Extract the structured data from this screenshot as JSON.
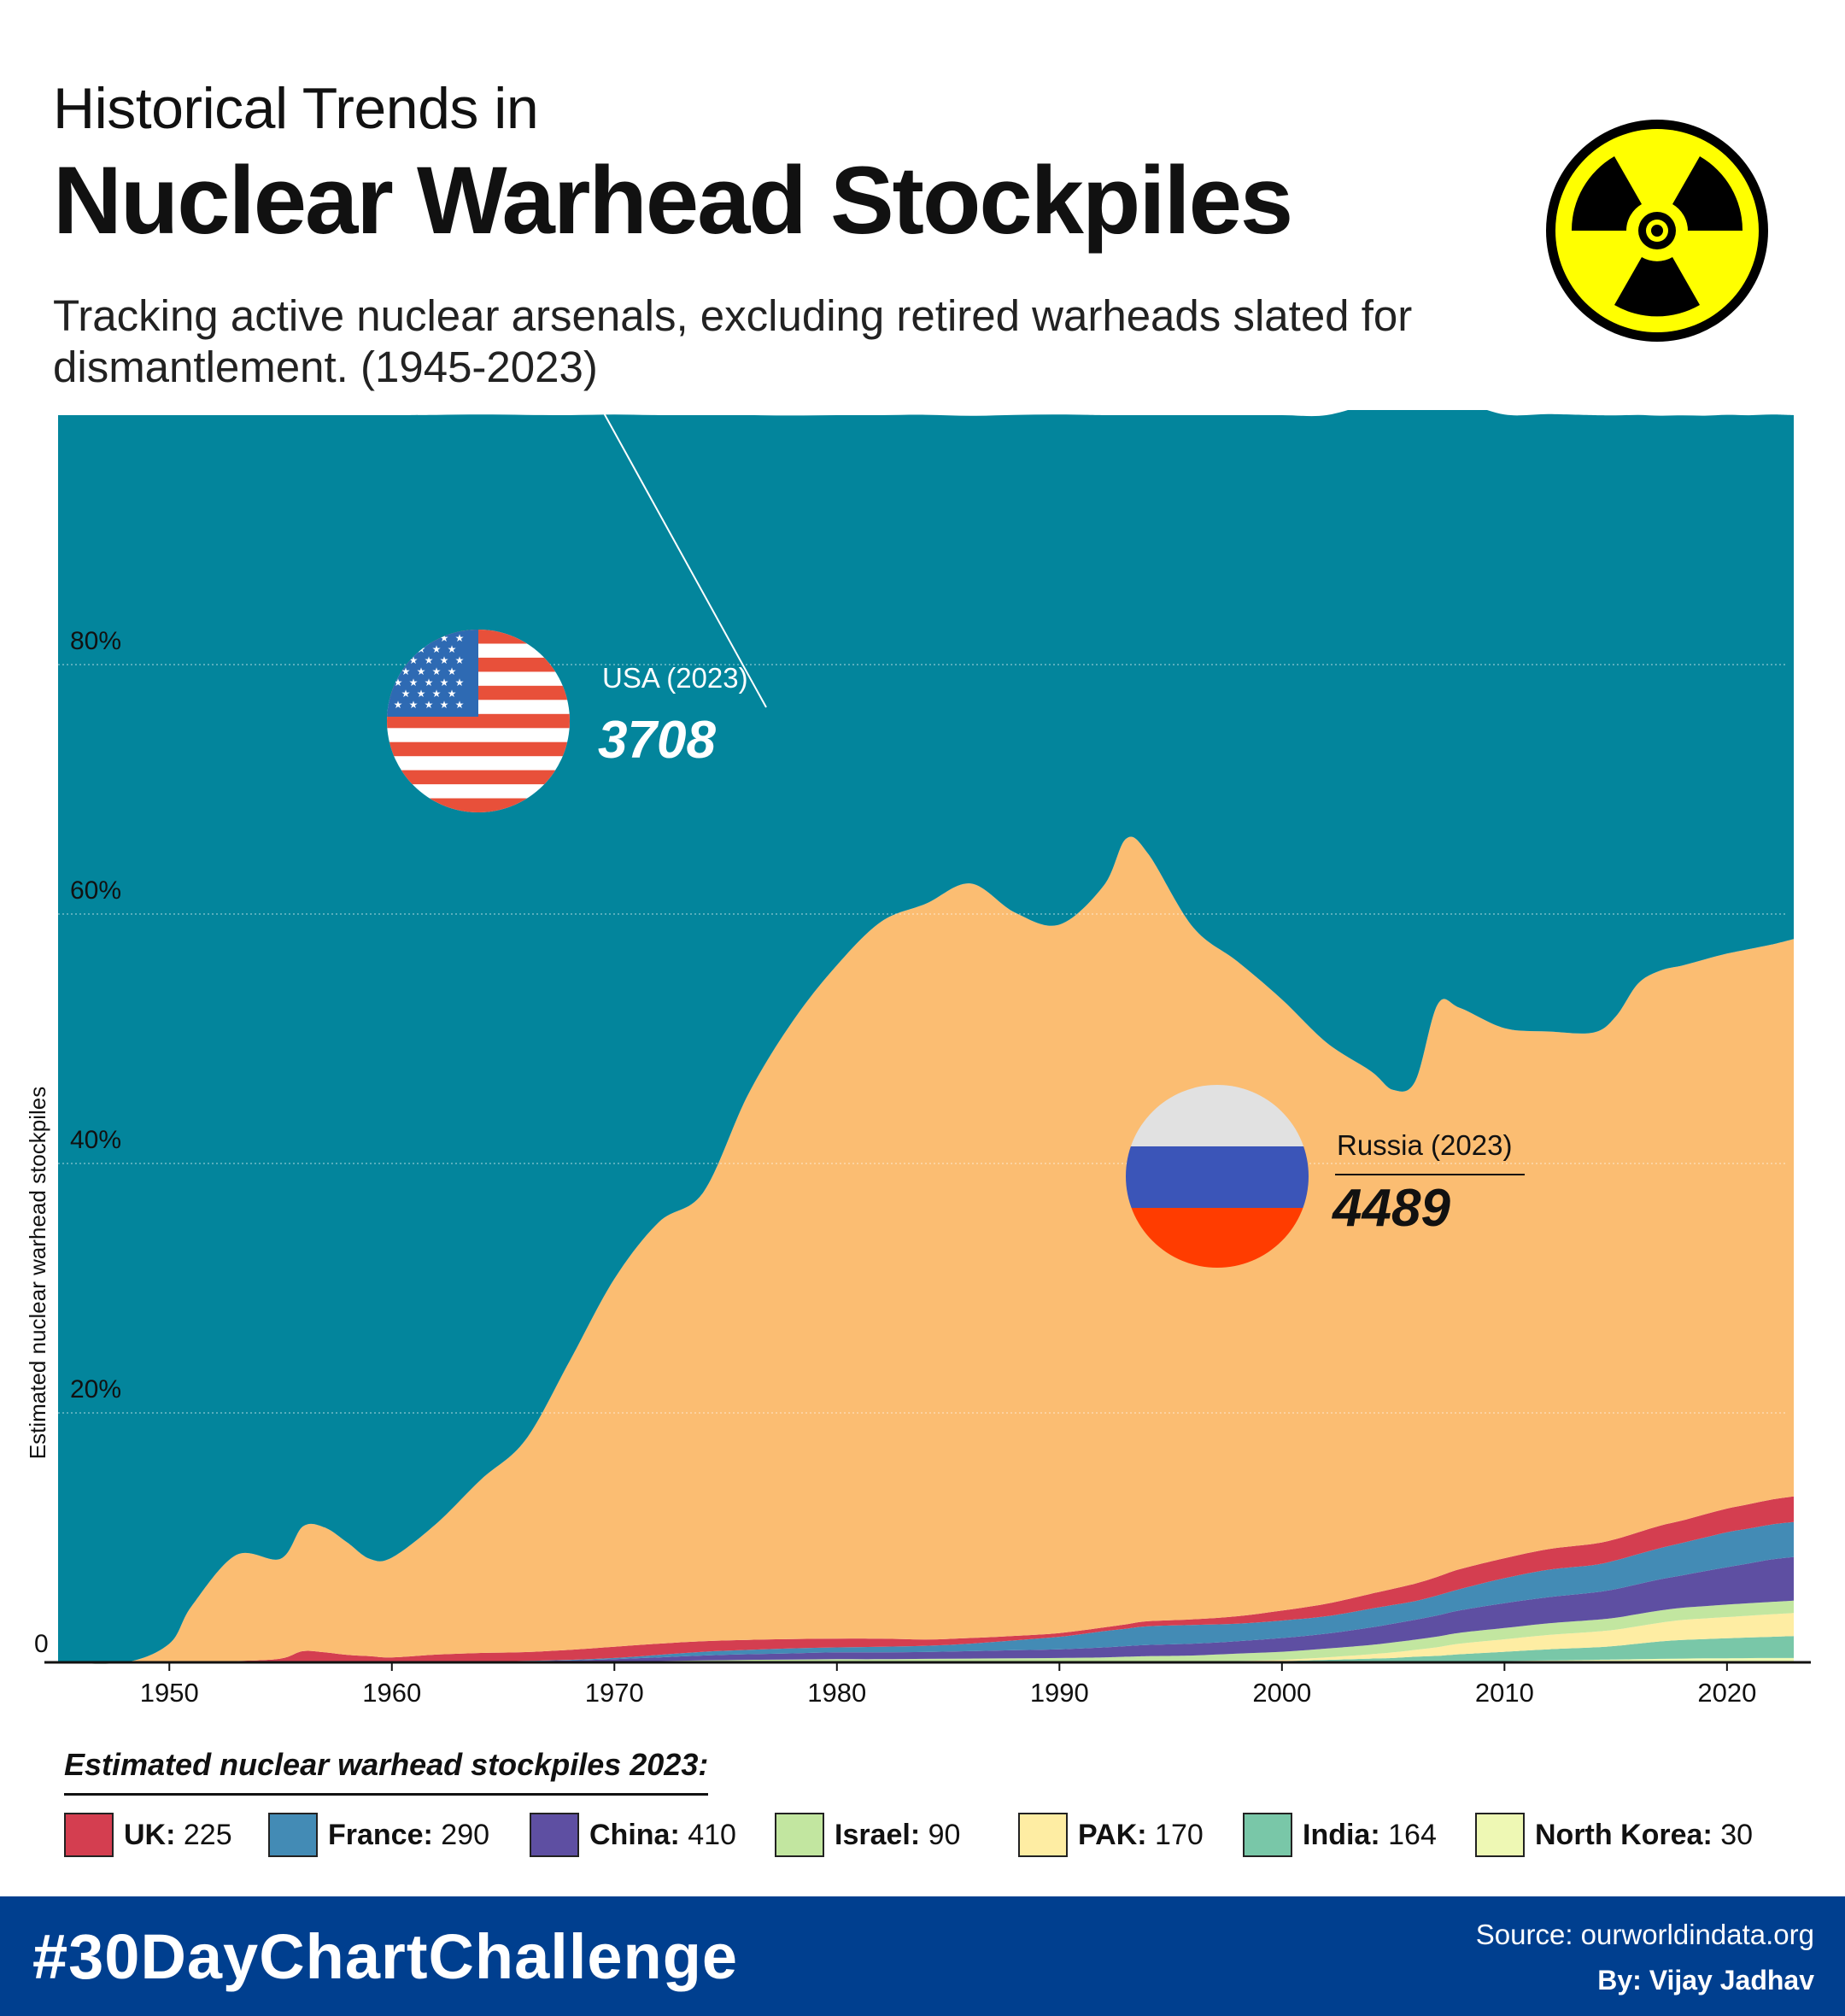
{
  "header": {
    "title_line1": "Historical Trends in",
    "title_line2": "Nuclear Warhead Stockpiles",
    "subtitle": "Tracking active nuclear arsenals, excluding retired warheads slated for dismantlement. (1945-2023)"
  },
  "icons": {
    "radiation": "radiation-symbol",
    "usa_flag": "usa-flag",
    "russia_flag": "russia-flag"
  },
  "colors": {
    "usa": "#03859c",
    "russia": "#fbbd72",
    "uk": "#d43e50",
    "france": "#438bb5",
    "china": "#5e4fa2",
    "israel": "#c2e6a0",
    "pak": "#feeda3",
    "india": "#79c7a8",
    "north_korea": "#eef8b4",
    "footer": "#003f8f"
  },
  "chart_data": {
    "type": "area",
    "stacked": true,
    "normalized": true,
    "ylabel": "Estimated nuclear warhead stockpiles",
    "ylim": [
      0,
      100
    ],
    "xlim": [
      1945,
      2023
    ],
    "x_ticks": [
      1950,
      1960,
      1970,
      1980,
      1990,
      2000,
      2010,
      2020
    ],
    "y_ticks": [
      {
        "value": 0,
        "label": "0"
      },
      {
        "value": 20,
        "label": "20%"
      },
      {
        "value": 40,
        "label": "40%"
      },
      {
        "value": 60,
        "label": "60%"
      },
      {
        "value": 80,
        "label": "80%"
      }
    ],
    "grid": true,
    "x": [
      1945,
      1948,
      1950,
      1951,
      1953,
      1955,
      1956,
      1957,
      1958,
      1959,
      1960,
      1962,
      1964,
      1966,
      1968,
      1970,
      1972,
      1974,
      1976,
      1978,
      1980,
      1982,
      1984,
      1986,
      1988,
      1990,
      1992,
      1993,
      1994,
      1996,
      1998,
      2000,
      2002,
      2004,
      2005,
      2006,
      2007,
      2008,
      2010,
      2012,
      2014,
      2015,
      2016,
      2017,
      2018,
      2019,
      2020,
      2021,
      2022,
      2023
    ],
    "series": [
      {
        "name": "North Korea",
        "values": [
          0,
          0,
          0,
          0,
          0,
          0,
          0,
          0,
          0,
          0,
          0,
          0,
          0,
          0,
          0,
          0,
          0,
          0,
          0,
          0,
          0,
          0,
          0,
          0,
          0,
          0,
          0,
          0,
          0,
          0,
          0,
          0,
          0,
          0,
          0,
          0,
          0.02,
          0.05,
          0.1,
          0.15,
          0.2,
          0.22,
          0.25,
          0.28,
          0.3,
          0.32,
          0.33,
          0.34,
          0.35,
          0.35
        ]
      },
      {
        "name": "India",
        "values": [
          0,
          0,
          0,
          0,
          0,
          0,
          0,
          0,
          0,
          0,
          0,
          0,
          0,
          0,
          0,
          0,
          0,
          0,
          0,
          0,
          0,
          0,
          0,
          0,
          0,
          0,
          0,
          0,
          0,
          0,
          0.05,
          0.1,
          0.2,
          0.3,
          0.35,
          0.45,
          0.5,
          0.6,
          0.75,
          0.9,
          1.0,
          1.1,
          1.25,
          1.4,
          1.5,
          1.55,
          1.6,
          1.65,
          1.7,
          1.75
        ]
      },
      {
        "name": "PAK",
        "values": [
          0,
          0,
          0,
          0,
          0,
          0,
          0,
          0,
          0,
          0,
          0,
          0,
          0,
          0,
          0,
          0,
          0,
          0,
          0,
          0,
          0,
          0,
          0,
          0,
          0,
          0,
          0,
          0,
          0,
          0,
          0.05,
          0.1,
          0.2,
          0.35,
          0.45,
          0.55,
          0.7,
          0.85,
          1.0,
          1.15,
          1.25,
          1.3,
          1.4,
          1.5,
          1.6,
          1.65,
          1.7,
          1.75,
          1.8,
          1.85
        ]
      },
      {
        "name": "Israel",
        "values": [
          0,
          0,
          0,
          0,
          0,
          0,
          0,
          0,
          0,
          0,
          0,
          0,
          0,
          0,
          0,
          0.05,
          0.1,
          0.15,
          0.2,
          0.22,
          0.25,
          0.25,
          0.28,
          0.3,
          0.32,
          0.35,
          0.4,
          0.45,
          0.5,
          0.55,
          0.6,
          0.65,
          0.7,
          0.75,
          0.8,
          0.82,
          0.85,
          0.87,
          0.9,
          0.93,
          0.95,
          0.96,
          0.97,
          0.98,
          0.98,
          0.99,
          1.0,
          1.0,
          1.0,
          1.0
        ]
      },
      {
        "name": "China",
        "values": [
          0,
          0,
          0,
          0,
          0,
          0,
          0,
          0,
          0,
          0,
          0,
          0.02,
          0.05,
          0.1,
          0.15,
          0.2,
          0.3,
          0.4,
          0.45,
          0.5,
          0.55,
          0.55,
          0.55,
          0.6,
          0.65,
          0.7,
          0.8,
          0.85,
          0.9,
          0.95,
          1.0,
          1.1,
          1.2,
          1.4,
          1.5,
          1.6,
          1.7,
          1.8,
          2.0,
          2.1,
          2.2,
          2.3,
          2.4,
          2.5,
          2.6,
          2.8,
          3.0,
          3.2,
          3.4,
          3.5
        ]
      },
      {
        "name": "France",
        "values": [
          0,
          0,
          0,
          0,
          0,
          0,
          0,
          0,
          0,
          0,
          0,
          0,
          0,
          0.02,
          0.05,
          0.1,
          0.2,
          0.3,
          0.35,
          0.4,
          0.4,
          0.45,
          0.5,
          0.6,
          0.8,
          1.0,
          1.3,
          1.4,
          1.5,
          1.5,
          1.4,
          1.4,
          1.4,
          1.5,
          1.5,
          1.5,
          1.6,
          1.7,
          2.0,
          2.2,
          2.2,
          2.3,
          2.4,
          2.5,
          2.6,
          2.7,
          2.8,
          2.8,
          2.8,
          2.8
        ]
      },
      {
        "name": "UK",
        "values": [
          0,
          0,
          0,
          0,
          0.1,
          0.3,
          0.9,
          0.8,
          0.6,
          0.5,
          0.4,
          0.6,
          0.7,
          0.7,
          0.8,
          0.9,
          0.9,
          0.85,
          0.8,
          0.75,
          0.7,
          0.65,
          0.5,
          0.45,
          0.35,
          0.3,
          0.3,
          0.35,
          0.4,
          0.45,
          0.6,
          0.8,
          1.0,
          1.2,
          1.3,
          1.4,
          1.5,
          1.6,
          1.6,
          1.65,
          1.7,
          1.7,
          1.75,
          1.8,
          1.8,
          1.85,
          1.9,
          1.95,
          2.0,
          2.05
        ]
      },
      {
        "name": "Russia",
        "values": [
          0,
          0,
          1.5,
          4.5,
          8.5,
          8.0,
          10.0,
          10.0,
          9.0,
          7.8,
          8.0,
          10.5,
          13.9,
          17.0,
          23.2,
          29.5,
          33.8,
          36.0,
          43.7,
          49.5,
          54.0,
          57.5,
          59.0,
          60.5,
          58.0,
          56.8,
          59.5,
          63.0,
          61.5,
          55.5,
          52.5,
          49.0,
          45.0,
          41.9,
          40.0,
          40.3,
          45.9,
          45.0,
          42.5,
          41.5,
          41.0,
          41.9,
          44.0,
          44.5,
          44.5,
          44.5,
          44.5,
          44.5,
          44.5,
          44.7
        ]
      },
      {
        "name": "USA",
        "values": [
          100,
          100,
          98.5,
          95.5,
          91.4,
          91.7,
          89.1,
          89.2,
          90.4,
          91.7,
          91.6,
          88.9,
          85.4,
          82.2,
          75.8,
          69.3,
          64.7,
          62.3,
          54.5,
          48.6,
          44.1,
          40.6,
          39.2,
          37.5,
          39.9,
          40.9,
          37.7,
          33.95,
          35.2,
          41.05,
          43.8,
          46.85,
          50.3,
          53.6,
          55.6,
          54.9,
          48.8,
          48.7,
          49.2,
          49.5,
          49.5,
          48.2,
          45.6,
          44.5,
          44.1,
          43.6,
          43.2,
          42.8,
          42.5,
          42.0
        ]
      }
    ]
  },
  "annotations": {
    "usa": {
      "label": "USA (2023)",
      "value": "3708"
    },
    "russia": {
      "label": "Russia (2023)",
      "value": "4489"
    }
  },
  "legend": {
    "title": "Estimated nuclear warhead stockpiles 2023:",
    "items": [
      {
        "name": "UK:",
        "value": "225",
        "color": "#d43e50"
      },
      {
        "name": "France:",
        "value": "290",
        "color": "#438bb5"
      },
      {
        "name": "China:",
        "value": "410",
        "color": "#5e4fa2"
      },
      {
        "name": "Israel:",
        "value": "90",
        "color": "#c2e6a0"
      },
      {
        "name": "PAK:",
        "value": "170",
        "color": "#feeda3"
      },
      {
        "name": "India:",
        "value": "164",
        "color": "#79c7a8"
      },
      {
        "name": "North Korea:",
        "value": "30",
        "color": "#eef8b4"
      }
    ]
  },
  "footer": {
    "hashtag": "#30DayChartChallenge",
    "source": "Source: ourworldindata.org",
    "byline": "By: Vijay Jadhav"
  }
}
